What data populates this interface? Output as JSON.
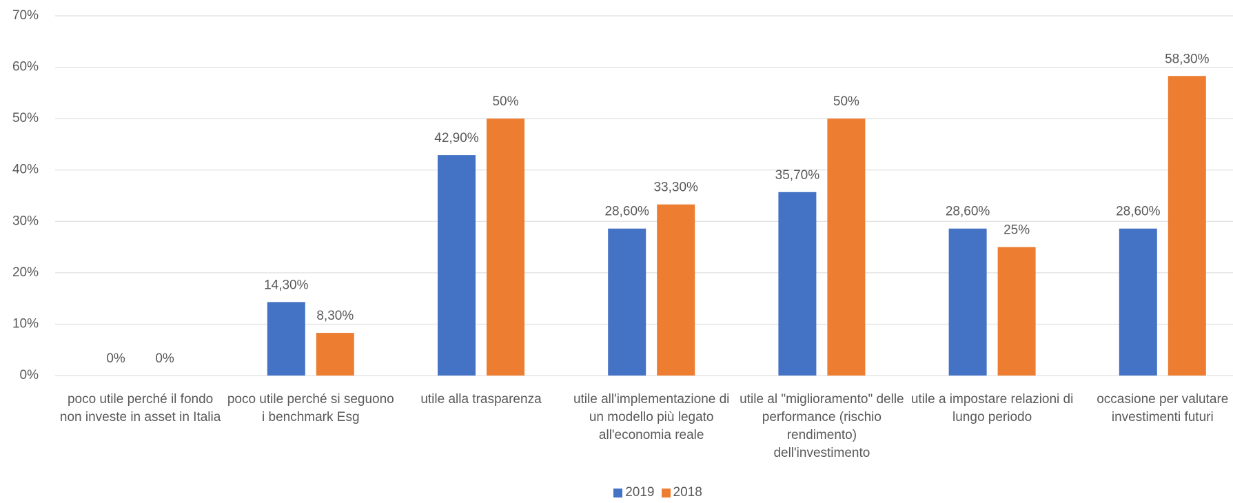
{
  "chart_data": {
    "type": "bar",
    "categories": [
      "poco utile perché il fondo non investe in asset in Italia",
      "poco utile perché si seguono i benchmark Esg",
      "utile alla trasparenza",
      "utile all'implementazione di un modello più legato all'economia reale",
      "utile al \"miglioramento\" delle performance (rischio rendimento) dell'investimento",
      "utile a impostare relazioni di lungo periodo",
      "occasione per valutare investimenti futuri"
    ],
    "series": [
      {
        "name": "2019",
        "color": "#4472c4",
        "values": [
          0,
          14.3,
          42.9,
          28.6,
          35.7,
          28.6,
          28.6
        ],
        "value_labels": [
          "0%",
          "14,30%",
          "42,90%",
          "28,60%",
          "35,70%",
          "28,60%",
          "28,60%"
        ]
      },
      {
        "name": "2018",
        "color": "#ed7d31",
        "values": [
          0,
          8.3,
          50,
          33.3,
          50,
          25,
          58.3
        ],
        "value_labels": [
          "0%",
          "8,30%",
          "50%",
          "33,30%",
          "50%",
          "25%",
          "58,30%"
        ]
      }
    ],
    "ylim": [
      0,
      70
    ],
    "yticks": [
      {
        "value": 0,
        "label": "0%"
      },
      {
        "value": 10,
        "label": "10%"
      },
      {
        "value": 20,
        "label": "20%"
      },
      {
        "value": 30,
        "label": "30%"
      },
      {
        "value": 40,
        "label": "40%"
      },
      {
        "value": 50,
        "label": "50%"
      },
      {
        "value": 60,
        "label": "60%"
      },
      {
        "value": 70,
        "label": "70%"
      }
    ],
    "grid": true,
    "legend": "bottom"
  }
}
